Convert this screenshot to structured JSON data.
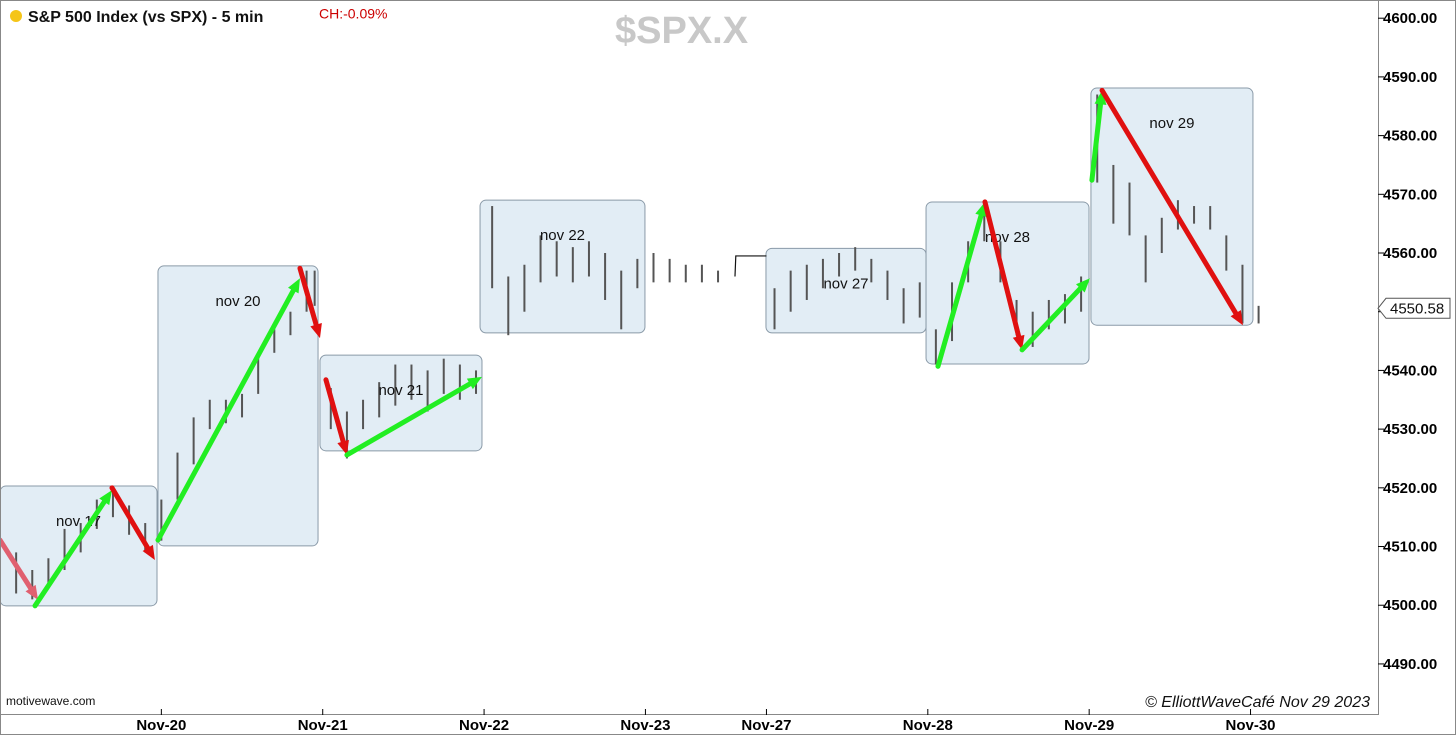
{
  "chart_data": {
    "type": "ohlc",
    "title": "S&P 500 Index (vs SPX) - 5 min",
    "change": "CH:-0.09%",
    "watermark": "$SPX.X",
    "source": "motivewave.com",
    "copyright": "© ElliottWaveCafé Nov 29 2023",
    "last_price": 4550.58,
    "last_price_label": "4550.58",
    "xlim": [
      0,
      8.54
    ],
    "ylim": [
      4481.3,
      4603.1
    ],
    "xticks": [
      {
        "value": 1,
        "label": "Nov-20"
      },
      {
        "value": 2,
        "label": "Nov-21"
      },
      {
        "value": 3,
        "label": "Nov-22"
      },
      {
        "value": 4,
        "label": "Nov-23"
      },
      {
        "value": 4.75,
        "label": "Nov-27"
      },
      {
        "value": 5.75,
        "label": "Nov-28"
      },
      {
        "value": 6.75,
        "label": "Nov-29"
      },
      {
        "value": 7.75,
        "label": "Nov-30"
      }
    ],
    "yticks": [
      {
        "value": 4490,
        "label": "4490.00"
      },
      {
        "value": 4500,
        "label": "4500.00"
      },
      {
        "value": 4510,
        "label": "4510.00"
      },
      {
        "value": 4520,
        "label": "4520.00"
      },
      {
        "value": 4530,
        "label": "4530.00"
      },
      {
        "value": 4540,
        "label": "4540.00"
      },
      {
        "value": 4550,
        "label": "4550.00"
      },
      {
        "value": 4560,
        "label": "4560.00"
      },
      {
        "value": 4570,
        "label": "4570.00"
      },
      {
        "value": 4580,
        "label": "4580.00"
      },
      {
        "value": 4590,
        "label": "4590.00"
      },
      {
        "value": 4600,
        "label": "4600.00"
      }
    ],
    "bar_color": "#555555",
    "bars": [
      {
        "x": 0.0,
        "low": 4503,
        "high": 4510
      },
      {
        "x": 0.1,
        "low": 4502,
        "high": 4509
      },
      {
        "x": 0.2,
        "low": 4501,
        "high": 4506
      },
      {
        "x": 0.3,
        "low": 4503,
        "high": 4508
      },
      {
        "x": 0.4,
        "low": 4506,
        "high": 4513
      },
      {
        "x": 0.5,
        "low": 4509,
        "high": 4514
      },
      {
        "x": 0.6,
        "low": 4513,
        "high": 4518
      },
      {
        "x": 0.7,
        "low": 4515,
        "high": 4520
      },
      {
        "x": 0.8,
        "low": 4512,
        "high": 4517
      },
      {
        "x": 0.9,
        "low": 4509,
        "high": 4514
      },
      {
        "x": 1.0,
        "low": 4511,
        "high": 4518
      },
      {
        "x": 1.1,
        "low": 4518,
        "high": 4526
      },
      {
        "x": 1.2,
        "low": 4524,
        "high": 4532
      },
      {
        "x": 1.3,
        "low": 4530,
        "high": 4535
      },
      {
        "x": 1.4,
        "low": 4531,
        "high": 4535
      },
      {
        "x": 1.5,
        "low": 4532,
        "high": 4536
      },
      {
        "x": 1.6,
        "low": 4536,
        "high": 4543
      },
      {
        "x": 1.7,
        "low": 4543,
        "high": 4547
      },
      {
        "x": 1.8,
        "low": 4546,
        "high": 4550
      },
      {
        "x": 1.9,
        "low": 4550,
        "high": 4557
      },
      {
        "x": 1.95,
        "low": 4551,
        "high": 4557
      },
      {
        "x": 2.05,
        "low": 4530,
        "high": 4537
      },
      {
        "x": 2.15,
        "low": 4525,
        "high": 4533
      },
      {
        "x": 2.25,
        "low": 4530,
        "high": 4535
      },
      {
        "x": 2.35,
        "low": 4532,
        "high": 4538
      },
      {
        "x": 2.45,
        "low": 4534,
        "high": 4541
      },
      {
        "x": 2.55,
        "low": 4535,
        "high": 4541
      },
      {
        "x": 2.65,
        "low": 4533,
        "high": 4540
      },
      {
        "x": 2.75,
        "low": 4536,
        "high": 4542
      },
      {
        "x": 2.85,
        "low": 4535,
        "high": 4541
      },
      {
        "x": 2.95,
        "low": 4536,
        "high": 4540
      },
      {
        "x": 3.05,
        "low": 4554,
        "high": 4568
      },
      {
        "x": 3.15,
        "low": 4546,
        "high": 4556
      },
      {
        "x": 3.25,
        "low": 4550,
        "high": 4558
      },
      {
        "x": 3.35,
        "low": 4555,
        "high": 4563
      },
      {
        "x": 3.45,
        "low": 4556,
        "high": 4562
      },
      {
        "x": 3.55,
        "low": 4555,
        "high": 4561
      },
      {
        "x": 3.65,
        "low": 4556,
        "high": 4562
      },
      {
        "x": 3.75,
        "low": 4552,
        "high": 4560
      },
      {
        "x": 3.85,
        "low": 4547,
        "high": 4557
      },
      {
        "x": 3.95,
        "low": 4554,
        "high": 4559
      },
      {
        "x": 4.05,
        "low": 4555,
        "high": 4560
      },
      {
        "x": 4.15,
        "low": 4555,
        "high": 4559
      },
      {
        "x": 4.25,
        "low": 4555,
        "high": 4558
      },
      {
        "x": 4.35,
        "low": 4555,
        "high": 4558
      },
      {
        "x": 4.45,
        "low": 4555,
        "high": 4557
      },
      {
        "x": 4.8,
        "low": 4547,
        "high": 4554
      },
      {
        "x": 4.9,
        "low": 4550,
        "high": 4557
      },
      {
        "x": 5.0,
        "low": 4552,
        "high": 4558
      },
      {
        "x": 5.1,
        "low": 4554,
        "high": 4559
      },
      {
        "x": 5.2,
        "low": 4556,
        "high": 4560
      },
      {
        "x": 5.3,
        "low": 4557,
        "high": 4561
      },
      {
        "x": 5.4,
        "low": 4555,
        "high": 4559
      },
      {
        "x": 5.5,
        "low": 4552,
        "high": 4557
      },
      {
        "x": 5.6,
        "low": 4548,
        "high": 4554
      },
      {
        "x": 5.7,
        "low": 4549,
        "high": 4555
      },
      {
        "x": 5.8,
        "low": 4541,
        "high": 4547
      },
      {
        "x": 5.9,
        "low": 4545,
        "high": 4555
      },
      {
        "x": 6.0,
        "low": 4555,
        "high": 4562
      },
      {
        "x": 6.1,
        "low": 4562,
        "high": 4568
      },
      {
        "x": 6.2,
        "low": 4555,
        "high": 4562
      },
      {
        "x": 6.3,
        "low": 4546,
        "high": 4552
      },
      {
        "x": 6.4,
        "low": 4544,
        "high": 4550
      },
      {
        "x": 6.5,
        "low": 4547,
        "high": 4552
      },
      {
        "x": 6.6,
        "low": 4548,
        "high": 4553
      },
      {
        "x": 6.7,
        "low": 4550,
        "high": 4556
      },
      {
        "x": 6.8,
        "low": 4572,
        "high": 4587
      },
      {
        "x": 6.9,
        "low": 4565,
        "high": 4575
      },
      {
        "x": 7.0,
        "low": 4563,
        "high": 4572
      },
      {
        "x": 7.1,
        "low": 4555,
        "high": 4563
      },
      {
        "x": 7.2,
        "low": 4560,
        "high": 4566
      },
      {
        "x": 7.3,
        "low": 4564,
        "high": 4569
      },
      {
        "x": 7.4,
        "low": 4565,
        "high": 4568
      },
      {
        "x": 7.5,
        "low": 4564,
        "high": 4568
      },
      {
        "x": 7.6,
        "low": 4557,
        "high": 4563
      },
      {
        "x": 7.7,
        "low": 4548,
        "high": 4558
      },
      {
        "x": 7.8,
        "low": 4548,
        "high": 4551
      }
    ],
    "holiday_line": {
      "x": [
        4.555,
        4.56,
        4.75
      ],
      "values": [
        4556,
        4559.5,
        4559.5
      ]
    },
    "boxes": [
      {
        "label": "nov 17",
        "x0": 0,
        "x1": 0.973,
        "top": 4520.3,
        "bottom": 4499.9
      },
      {
        "label": "nov 20",
        "x0": 0.979,
        "x1": 1.971,
        "top": 4557.8,
        "bottom": 4510.1
      },
      {
        "label": "nov 21",
        "x0": 1.983,
        "x1": 2.987,
        "top": 4542.6,
        "bottom": 4526.3
      },
      {
        "label": "nov 22",
        "x0": 2.975,
        "x1": 3.997,
        "top": 4569.0,
        "bottom": 4546.4
      },
      {
        "label": "nov 27",
        "x0": 4.747,
        "x1": 5.739,
        "top": 4560.8,
        "bottom": 4546.4
      },
      {
        "label": "nov 28",
        "x0": 5.739,
        "x1": 6.749,
        "top": 4568.7,
        "bottom": 4541.1
      },
      {
        "label": "nov 29",
        "x0": 6.761,
        "x1": 7.765,
        "top": 4588.1,
        "bottom": 4547.7
      }
    ],
    "arrows": [
      {
        "color": "#e06070",
        "x0": 0,
        "y0": 4511.1,
        "x1": 0.236,
        "y1": 4500.9
      },
      {
        "color": "#22ee22",
        "x0": 0.217,
        "y0": 4499.9,
        "x1": 0.694,
        "y1": 4519.6
      },
      {
        "color": "#e01010",
        "x0": 0.694,
        "y0": 4520.0,
        "x1": 0.96,
        "y1": 4507.7
      },
      {
        "color": "#22ee22",
        "x0": 0.979,
        "y0": 4511.1,
        "x1": 1.859,
        "y1": 4555.7
      },
      {
        "color": "#e01010",
        "x0": 1.859,
        "y0": 4557.4,
        "x1": 1.983,
        "y1": 4545.5
      },
      {
        "color": "#e01010",
        "x0": 2.02,
        "y0": 4538.4,
        "x1": 2.15,
        "y1": 4525.6
      },
      {
        "color": "#22ee22",
        "x0": 2.15,
        "y0": 4525.6,
        "x1": 2.987,
        "y1": 4538.9
      },
      {
        "color": "#22ee22",
        "x0": 5.813,
        "y0": 4540.7,
        "x1": 6.104,
        "y1": 4568.7
      },
      {
        "color": "#e01010",
        "x0": 6.104,
        "y0": 4568.7,
        "x1": 6.334,
        "y1": 4543.5
      },
      {
        "color": "#22ee22",
        "x0": 6.334,
        "y0": 4543.5,
        "x1": 6.755,
        "y1": 4555.7
      },
      {
        "color": "#22ee22",
        "x0": 6.767,
        "y0": 4572.4,
        "x1": 6.83,
        "y1": 4587.7
      },
      {
        "color": "#e01010",
        "x0": 6.83,
        "y0": 4587.7,
        "x1": 7.703,
        "y1": 4547.7
      }
    ]
  }
}
